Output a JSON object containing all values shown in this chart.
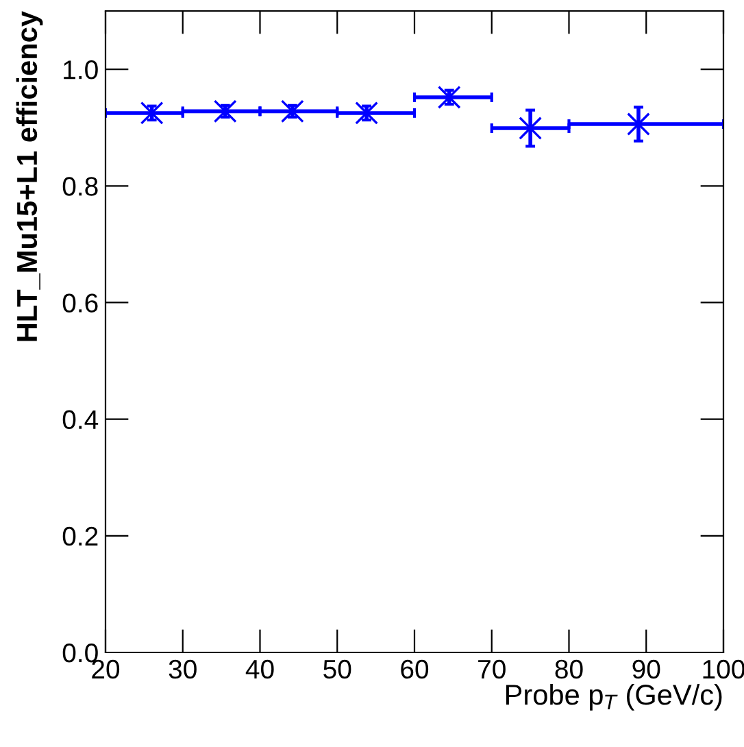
{
  "chart_data": {
    "type": "scatter",
    "xlabel": "Probe p$_{T}$ (GeV/c)",
    "ylabel": "HLT_Mu15+L1 efficiency",
    "x": [
      26,
      35.5,
      44.2,
      53.8,
      64.5,
      75,
      89
    ],
    "series": [
      {
        "color": "#0000ff",
        "values": [
          0.925,
          0.928,
          0.928,
          0.925,
          0.952,
          0.899,
          0.906
        ],
        "errors": [
          0.012,
          0.01,
          0.01,
          0.012,
          0.012,
          0.031,
          0.029
        ],
        "xerrors": [
          [
            20,
            30
          ],
          [
            30,
            40
          ],
          [
            40,
            50
          ],
          [
            50,
            60
          ],
          [
            60,
            70
          ],
          [
            70,
            80
          ],
          [
            80,
            100
          ]
        ]
      }
    ],
    "marker": "cross",
    "xlim": [
      20,
      100
    ],
    "xticks": [
      20,
      30,
      40,
      50,
      60,
      70,
      80,
      90,
      100
    ],
    "ylim": [
      0,
      1.1
    ],
    "yticks": [
      {
        "value": 0,
        "label": "0.0"
      },
      {
        "value": 0.2,
        "label": "0.2"
      },
      {
        "value": 0.4,
        "label": "0.4"
      },
      {
        "value": 0.6,
        "label": "0.6"
      },
      {
        "value": 0.8,
        "label": "0.8"
      },
      {
        "value": 1.0,
        "label": "1.0"
      }
    ],
    "grid": false,
    "legend": false
  }
}
